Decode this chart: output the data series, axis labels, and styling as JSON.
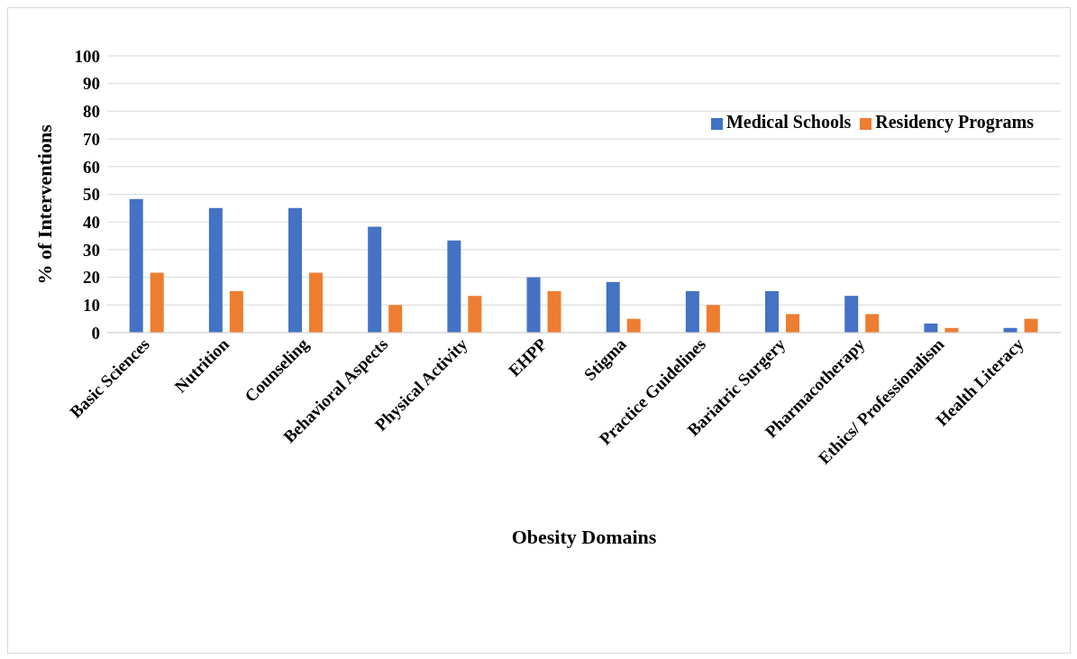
{
  "chart_data": {
    "type": "bar",
    "xlabel": "Obesity Domains",
    "ylabel": "% of Interventions",
    "categories": [
      "Basic Sciences",
      "Nutrition",
      "Counseling",
      "Behavioral Aspects",
      "Physical Activity",
      "EHPP",
      "Stigma",
      "Practice Guidelines",
      "Bariatric Surgery",
      "Pharmacotherapy",
      "Ethics/ Professionalism",
      "Health Literacy"
    ],
    "series": [
      {
        "name": "Medical Schools",
        "color": "#4472c4",
        "values": [
          48.3,
          45,
          45,
          38.3,
          33.3,
          20,
          18.3,
          15,
          15,
          13.3,
          3.3,
          1.7
        ]
      },
      {
        "name": "Residency Programs",
        "color": "#ed7d31",
        "values": [
          21.7,
          15,
          21.7,
          10,
          13.3,
          15,
          5,
          10,
          6.7,
          6.7,
          1.7,
          5
        ]
      }
    ],
    "ylim": [
      0,
      100
    ],
    "yticks": [
      0,
      10,
      20,
      30,
      40,
      50,
      60,
      70,
      80,
      90,
      100
    ],
    "grid": "y",
    "legend": "top right"
  }
}
